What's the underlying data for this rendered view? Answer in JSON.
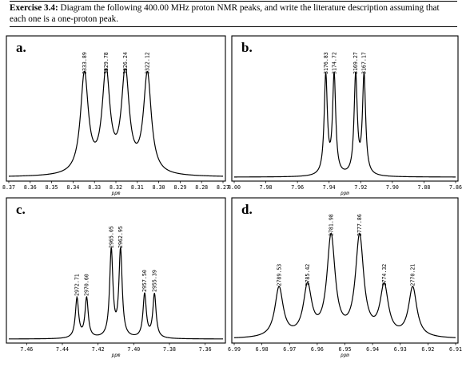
{
  "exercise": {
    "label": "Exercise 3.4:",
    "text": "Diagram the following 400.00 MHz proton NMR peaks, and write the literature description assuming that each one is a one-proton peak."
  },
  "chart_data": [
    {
      "type": "line",
      "panel": "a.",
      "xlabel": "ppm",
      "xlim": [
        8.37,
        8.27
      ],
      "x_ticks": [
        "8.37",
        "8.36",
        "8.35",
        "8.34",
        "8.33",
        "8.32",
        "8.31",
        "8.30",
        "8.29",
        "8.28",
        "8.27"
      ],
      "peaks_ppm": [
        8.3347,
        8.3246,
        8.3156,
        8.3053
      ],
      "peak_labels": [
        "3333.89",
        "3329.78",
        "3326.24",
        "3322.12"
      ],
      "relative_heights": [
        1.0,
        1.0,
        1.0,
        1.0
      ]
    },
    {
      "type": "line",
      "panel": "b.",
      "xlabel": "ppm",
      "xlim": [
        8.0,
        7.86
      ],
      "x_ticks": [
        "8.00",
        "7.98",
        "7.96",
        "7.94",
        "7.92",
        "7.90",
        "7.88",
        "7.86"
      ],
      "peaks_ppm": [
        7.9421,
        7.9368,
        7.9232,
        7.9179
      ],
      "peak_labels": [
        "3176.83",
        "3174.72",
        "3169.27",
        "3167.17"
      ],
      "relative_heights": [
        1.0,
        1.0,
        1.0,
        1.0
      ]
    },
    {
      "type": "line",
      "panel": "c.",
      "xlabel": "ppm",
      "xlim": [
        7.47,
        7.35
      ],
      "x_ticks": [
        "7.46",
        "7.44",
        "7.42",
        "7.40",
        "7.38",
        "7.36"
      ],
      "peaks_ppm": [
        7.4318,
        7.4264,
        7.4126,
        7.4074,
        7.3939,
        7.3884
      ],
      "peak_labels": [
        "2972.71",
        "2970.60",
        "2965.05",
        "2962.95",
        "2957.50",
        "2955.39"
      ],
      "relative_heights": [
        0.4,
        0.4,
        0.88,
        0.88,
        0.44,
        0.44
      ]
    },
    {
      "type": "line",
      "panel": "d.",
      "xlabel": "ppm",
      "xlim": [
        6.99,
        6.91
      ],
      "x_ticks": [
        "6.99",
        "6.98",
        "6.97",
        "6.96",
        "6.95",
        "6.94",
        "6.93",
        "6.92",
        "6.91"
      ],
      "peaks_ppm": [
        6.9738,
        6.9635,
        6.955,
        6.9447,
        6.9358,
        6.9255
      ],
      "peak_labels": [
        "2789.53",
        "2785.42",
        "2781.98",
        "2777.86",
        "2774.32",
        "2770.21"
      ],
      "relative_heights": [
        0.5,
        0.5,
        1.0,
        1.0,
        0.5,
        0.5
      ]
    }
  ]
}
